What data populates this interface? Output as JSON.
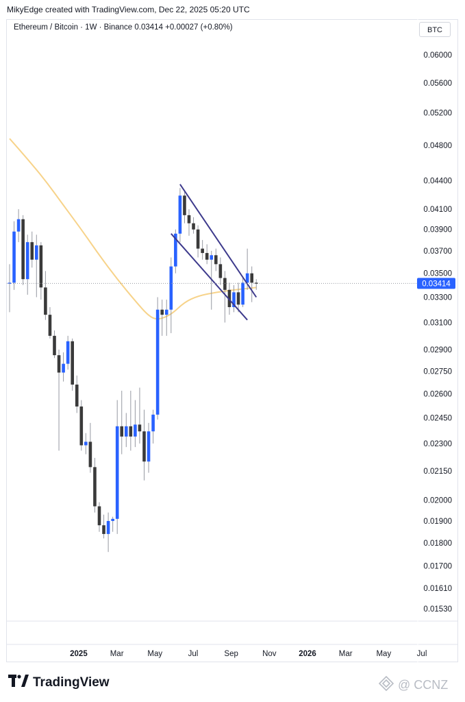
{
  "header": {
    "credit": "MikyEdge created with TradingView.com, Dec 22, 2025 05:20 UTC"
  },
  "symbol": {
    "legend": "Ethereum / Bitcoin · 1W · Binance  0.03414  +0.00027 (+0.80%)"
  },
  "currency_button": "BTC",
  "price_label": "0.03414",
  "footer": {
    "logo_text": "TradingView",
    "watermark": "@ CCNZ"
  },
  "colors": {
    "up": "#2962ff",
    "down": "#3a3a3a",
    "ma": "#f7d38a",
    "trendline": "#3d3a8c",
    "price_tag": "#2962ff"
  },
  "chart_data": {
    "type": "candlestick",
    "title": "Ethereum / Bitcoin · 1W · Binance",
    "last_price": 0.03414,
    "change": 0.00027,
    "change_pct": 0.8,
    "y_scale": "log",
    "y_ticks": [
      0.06,
      0.056,
      0.052,
      0.048,
      0.044,
      0.041,
      0.039,
      0.037,
      0.035,
      0.033,
      0.031,
      0.029,
      0.0275,
      0.026,
      0.0245,
      0.023,
      0.0215,
      0.02,
      0.019,
      0.018,
      0.017,
      0.0161,
      0.0153
    ],
    "y_tick_labels": [
      "0.06000",
      "0.05600",
      "0.05200",
      "0.04800",
      "0.04400",
      "0.04100",
      "0.03900",
      "0.03700",
      "0.03500",
      "0.03300",
      "0.03100",
      "0.02900",
      "0.02750",
      "0.02600",
      "0.02450",
      "0.02300",
      "0.02150",
      "0.02000",
      "0.01900",
      "0.01800",
      "0.01700",
      "0.01610",
      "0.01530"
    ],
    "x_ticks": [
      "2025",
      "Mar",
      "May",
      "Jul",
      "Sep",
      "Nov",
      "2026",
      "Mar",
      "May",
      "Jul"
    ],
    "x_tick_weeks": [
      9,
      17.5,
      26,
      34.5,
      43,
      51.5,
      60,
      68.5,
      77,
      85.5
    ],
    "candles": [
      {
        "w": 0,
        "o": 0.0342,
        "h": 0.0358,
        "l": 0.0318,
        "c": 0.0342
      },
      {
        "w": 1,
        "o": 0.0342,
        "h": 0.0398,
        "l": 0.0336,
        "c": 0.0388
      },
      {
        "w": 2,
        "o": 0.0388,
        "h": 0.041,
        "l": 0.0378,
        "c": 0.04
      },
      {
        "w": 3,
        "o": 0.04,
        "h": 0.0404,
        "l": 0.034,
        "c": 0.0345
      },
      {
        "w": 4,
        "o": 0.0345,
        "h": 0.0385,
        "l": 0.0332,
        "c": 0.0378
      },
      {
        "w": 5,
        "o": 0.0378,
        "h": 0.0388,
        "l": 0.0355,
        "c": 0.0362
      },
      {
        "w": 6,
        "o": 0.0362,
        "h": 0.0385,
        "l": 0.033,
        "c": 0.0375
      },
      {
        "w": 7,
        "o": 0.0375,
        "h": 0.0378,
        "l": 0.0328,
        "c": 0.0338
      },
      {
        "w": 8,
        "o": 0.0338,
        "h": 0.0352,
        "l": 0.0312,
        "c": 0.0316
      },
      {
        "w": 9,
        "o": 0.0316,
        "h": 0.0322,
        "l": 0.0298,
        "c": 0.03
      },
      {
        "w": 10,
        "o": 0.03,
        "h": 0.0304,
        "l": 0.0284,
        "c": 0.0286
      },
      {
        "w": 11,
        "o": 0.0286,
        "h": 0.029,
        "l": 0.0226,
        "c": 0.0274
      },
      {
        "w": 12,
        "o": 0.0274,
        "h": 0.0288,
        "l": 0.0268,
        "c": 0.028
      },
      {
        "w": 13,
        "o": 0.028,
        "h": 0.03,
        "l": 0.0276,
        "c": 0.0296
      },
      {
        "w": 14,
        "o": 0.0296,
        "h": 0.0298,
        "l": 0.0262,
        "c": 0.0266
      },
      {
        "w": 15,
        "o": 0.0266,
        "h": 0.0272,
        "l": 0.0248,
        "c": 0.0252
      },
      {
        "w": 16,
        "o": 0.0252,
        "h": 0.0256,
        "l": 0.0226,
        "c": 0.0229
      },
      {
        "w": 17,
        "o": 0.0229,
        "h": 0.0236,
        "l": 0.0224,
        "c": 0.0231
      },
      {
        "w": 18,
        "o": 0.0231,
        "h": 0.0242,
        "l": 0.0214,
        "c": 0.0217
      },
      {
        "w": 19,
        "o": 0.0217,
        "h": 0.0222,
        "l": 0.0194,
        "c": 0.0197
      },
      {
        "w": 20,
        "o": 0.0197,
        "h": 0.0199,
        "l": 0.0185,
        "c": 0.0188
      },
      {
        "w": 21,
        "o": 0.0188,
        "h": 0.0193,
        "l": 0.0182,
        "c": 0.0184
      },
      {
        "w": 22,
        "o": 0.0184,
        "h": 0.0194,
        "l": 0.0176,
        "c": 0.019
      },
      {
        "w": 23,
        "o": 0.019,
        "h": 0.0192,
        "l": 0.0185,
        "c": 0.0191
      },
      {
        "w": 24,
        "o": 0.0191,
        "h": 0.0256,
        "l": 0.0184,
        "c": 0.024
      },
      {
        "w": 25,
        "o": 0.024,
        "h": 0.0262,
        "l": 0.0224,
        "c": 0.0234
      },
      {
        "w": 26,
        "o": 0.0234,
        "h": 0.0248,
        "l": 0.0228,
        "c": 0.024
      },
      {
        "w": 27,
        "o": 0.024,
        "h": 0.0262,
        "l": 0.0226,
        "c": 0.0234
      },
      {
        "w": 28,
        "o": 0.0234,
        "h": 0.0256,
        "l": 0.0228,
        "c": 0.0241
      },
      {
        "w": 29,
        "o": 0.0241,
        "h": 0.0264,
        "l": 0.023,
        "c": 0.0237
      },
      {
        "w": 30,
        "o": 0.0237,
        "h": 0.025,
        "l": 0.021,
        "c": 0.022
      },
      {
        "w": 31,
        "o": 0.022,
        "h": 0.0242,
        "l": 0.0214,
        "c": 0.0237
      },
      {
        "w": 32,
        "o": 0.0237,
        "h": 0.025,
        "l": 0.023,
        "c": 0.0247
      },
      {
        "w": 33,
        "o": 0.0247,
        "h": 0.033,
        "l": 0.0244,
        "c": 0.032
      },
      {
        "w": 34,
        "o": 0.032,
        "h": 0.0328,
        "l": 0.03,
        "c": 0.0316
      },
      {
        "w": 35,
        "o": 0.0316,
        "h": 0.0328,
        "l": 0.03,
        "c": 0.032
      },
      {
        "w": 36,
        "o": 0.032,
        "h": 0.0364,
        "l": 0.0302,
        "c": 0.0356
      },
      {
        "w": 37,
        "o": 0.0356,
        "h": 0.039,
        "l": 0.035,
        "c": 0.0386
      },
      {
        "w": 38,
        "o": 0.0386,
        "h": 0.0432,
        "l": 0.0378,
        "c": 0.0424
      },
      {
        "w": 39,
        "o": 0.0424,
        "h": 0.0428,
        "l": 0.0396,
        "c": 0.0404
      },
      {
        "w": 40,
        "o": 0.0404,
        "h": 0.041,
        "l": 0.0384,
        "c": 0.0396
      },
      {
        "w": 41,
        "o": 0.0396,
        "h": 0.0402,
        "l": 0.0386,
        "c": 0.039
      },
      {
        "w": 42,
        "o": 0.039,
        "h": 0.0394,
        "l": 0.0364,
        "c": 0.0372
      },
      {
        "w": 43,
        "o": 0.0372,
        "h": 0.038,
        "l": 0.0362,
        "c": 0.0368
      },
      {
        "w": 44,
        "o": 0.0368,
        "h": 0.0376,
        "l": 0.0358,
        "c": 0.0362
      },
      {
        "w": 45,
        "o": 0.0362,
        "h": 0.037,
        "l": 0.032,
        "c": 0.0366
      },
      {
        "w": 46,
        "o": 0.0366,
        "h": 0.0372,
        "l": 0.0352,
        "c": 0.0358
      },
      {
        "w": 47,
        "o": 0.0358,
        "h": 0.0364,
        "l": 0.034,
        "c": 0.0346
      },
      {
        "w": 48,
        "o": 0.0346,
        "h": 0.0352,
        "l": 0.031,
        "c": 0.0336
      },
      {
        "w": 49,
        "o": 0.0336,
        "h": 0.0342,
        "l": 0.0316,
        "c": 0.0322
      },
      {
        "w": 50,
        "o": 0.0322,
        "h": 0.034,
        "l": 0.0318,
        "c": 0.0334
      },
      {
        "w": 51,
        "o": 0.0334,
        "h": 0.0342,
        "l": 0.0318,
        "c": 0.0324
      },
      {
        "w": 52,
        "o": 0.0324,
        "h": 0.0346,
        "l": 0.0322,
        "c": 0.0342
      },
      {
        "w": 53,
        "o": 0.0342,
        "h": 0.0372,
        "l": 0.0336,
        "c": 0.035
      },
      {
        "w": 54,
        "o": 0.035,
        "h": 0.0356,
        "l": 0.0326,
        "c": 0.0342
      },
      {
        "w": 55,
        "o": 0.0342,
        "h": 0.0345,
        "l": 0.0336,
        "c": 0.03414
      }
    ],
    "moving_average": [
      {
        "w": 0,
        "v": 0.0488
      },
      {
        "w": 4,
        "v": 0.0464
      },
      {
        "w": 8,
        "v": 0.044
      },
      {
        "w": 12,
        "v": 0.0414
      },
      {
        "w": 16,
        "v": 0.039
      },
      {
        "w": 20,
        "v": 0.0366
      },
      {
        "w": 24,
        "v": 0.0345
      },
      {
        "w": 28,
        "v": 0.0327
      },
      {
        "w": 31,
        "v": 0.0315
      },
      {
        "w": 33,
        "v": 0.0312
      },
      {
        "w": 36,
        "v": 0.0316
      },
      {
        "w": 39,
        "v": 0.0326
      },
      {
        "w": 42,
        "v": 0.0331
      },
      {
        "w": 46,
        "v": 0.0334
      },
      {
        "w": 50,
        "v": 0.0336
      },
      {
        "w": 55,
        "v": 0.0338
      }
    ],
    "trendlines": [
      {
        "w1": 38,
        "p1": 0.0436,
        "w2": 55,
        "p2": 0.033
      },
      {
        "w1": 36,
        "p1": 0.0386,
        "w2": 53,
        "p2": 0.0312
      }
    ]
  }
}
